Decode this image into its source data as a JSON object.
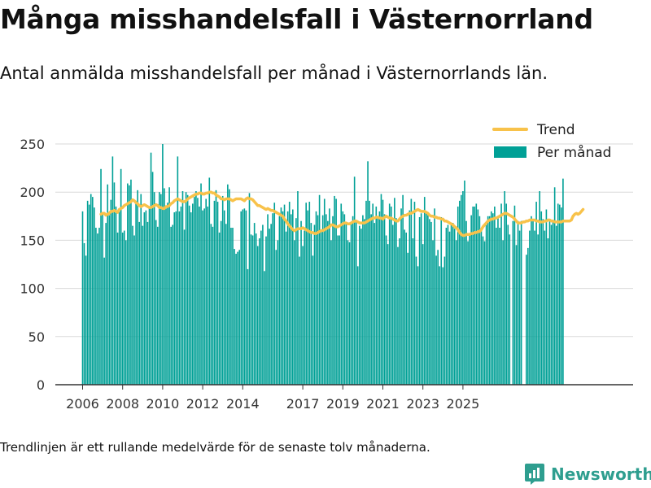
{
  "header": {
    "title": "Många misshandelsfall i Västernorrland",
    "subtitle": "Antal anmälda misshandelsfall per månad i Västernorrlands län."
  },
  "footer": {
    "note": "Trendlinjen är ett rullande medelvärde för de senaste tolv månaderna.",
    "brand": "Newsworthy"
  },
  "colors": {
    "bar": "#00a096",
    "trend": "#f8c24a",
    "grid": "#d9d9d9",
    "axis": "#333333",
    "brand": "#2e9e8f"
  },
  "icons": {
    "brand_logo": "bar-chart-logo-icon"
  },
  "chart_data": {
    "type": "bar",
    "x_start": "2006-01",
    "ylim": [
      0,
      250
    ],
    "yticks": [
      0,
      50,
      100,
      150,
      200,
      250
    ],
    "xticks": [
      {
        "label": "2006",
        "date": "2006-01"
      },
      {
        "label": "2008",
        "date": "2008-01"
      },
      {
        "label": "2010",
        "date": "2010-01"
      },
      {
        "label": "2012",
        "date": "2012-01"
      },
      {
        "label": "2014",
        "date": "2014-01"
      },
      {
        "label": "2017",
        "date": "2017-01"
      },
      {
        "label": "2019",
        "date": "2019-01"
      },
      {
        "label": "2021",
        "date": "2021-01"
      },
      {
        "label": "2023",
        "date": "2023-01"
      },
      {
        "label": "2025",
        "date": "2025-01"
      }
    ],
    "grid": true,
    "legend_position": "top-right",
    "series": [
      {
        "name": "Per månad",
        "type": "bar",
        "values": [
          180,
          147,
          134,
          191,
          187,
          198,
          195,
          184,
          163,
          157,
          163,
          224,
          178,
          132,
          168,
          208,
          176,
          192,
          237,
          210,
          185,
          158,
          180,
          224,
          158,
          160,
          150,
          209,
          207,
          213,
          165,
          155,
          191,
          202,
          169,
          198,
          165,
          179,
          181,
          169,
          185,
          241,
          221,
          200,
          171,
          164,
          200,
          198,
          250,
          204,
          183,
          189,
          205,
          164,
          166,
          179,
          180,
          237,
          180,
          185,
          201,
          161,
          200,
          197,
          186,
          179,
          188,
          195,
          201,
          194,
          185,
          209,
          181,
          183,
          193,
          185,
          215,
          167,
          164,
          191,
          202,
          190,
          158,
          170,
          196,
          181,
          167,
          208,
          203,
          163,
          163,
          141,
          136,
          138,
          140,
          180,
          182,
          183,
          181,
          120,
          199,
          156,
          155,
          168,
          157,
          144,
          152,
          160,
          166,
          118,
          154,
          177,
          162,
          167,
          178,
          189,
          140,
          150,
          175,
          184,
          180,
          187,
          159,
          180,
          190,
          177,
          182,
          150,
          173,
          201,
          133,
          170,
          144,
          160,
          189,
          181,
          190,
          168,
          134,
          166,
          180,
          176,
          197,
          160,
          176,
          193,
          177,
          170,
          183,
          150,
          175,
          196,
          193,
          155,
          155,
          188,
          180,
          177,
          167,
          150,
          148,
          167,
          175,
          216,
          170,
          123,
          165,
          162,
          176,
          172,
          191,
          232,
          191,
          177,
          188,
          168,
          185,
          174,
          180,
          198,
          192,
          177,
          155,
          146,
          188,
          185,
          166,
          194,
          173,
          143,
          152,
          183,
          197,
          161,
          158,
          137,
          181,
          193,
          152,
          190,
          133,
          123,
          174,
          178,
          146,
          195,
          180,
          176,
          172,
          169,
          150,
          183,
          134,
          140,
          123,
          174,
          122,
          133,
          163,
          166,
          159,
          168,
          168,
          162,
          150,
          185,
          191,
          197,
          201,
          212,
          170,
          149,
          155,
          176,
          185,
          185,
          188,
          182,
          175,
          162,
          154,
          149,
          166,
          175,
          175,
          180,
          178,
          185,
          163,
          175,
          163,
          188,
          150,
          201,
          188,
          166,
          156,
          0,
          170,
          186,
          145,
          170,
          160,
          170,
          0,
          0,
          135,
          142,
          160,
          175,
          170,
          160,
          190,
          156,
          201,
          180,
          172,
          160,
          182,
          152,
          172,
          166,
          170,
          205,
          165,
          188,
          187,
          184,
          214
        ]
      },
      {
        "name": "Trend",
        "type": "line",
        "start_index": 11,
        "values": [
          177,
          178,
          178,
          176,
          177,
          178,
          180,
          180,
          181,
          180,
          179,
          182,
          183,
          184,
          186,
          187,
          188,
          189,
          190,
          192,
          191,
          189,
          188,
          186,
          185,
          186,
          187,
          186,
          185,
          184,
          184,
          185,
          186,
          187,
          186,
          184,
          184,
          183,
          183,
          185,
          185,
          186,
          188,
          189,
          191,
          192,
          193,
          192,
          191,
          190,
          190,
          191,
          193,
          194,
          195,
          196,
          197,
          198,
          198,
          199,
          199,
          198,
          198,
          199,
          199,
          200,
          200,
          199,
          199,
          197,
          196,
          195,
          193,
          193,
          192,
          193,
          193,
          193,
          192,
          191,
          192,
          193,
          193,
          193,
          193,
          192,
          191,
          193,
          194,
          193,
          193,
          192,
          190,
          188,
          186,
          186,
          185,
          184,
          183,
          182,
          183,
          182,
          181,
          181,
          180,
          179,
          178,
          177,
          176,
          175,
          172,
          170,
          167,
          165,
          163,
          161,
          160,
          161,
          162,
          162,
          162,
          163,
          162,
          161,
          160,
          159,
          158,
          158,
          157,
          157,
          158,
          159,
          160,
          160,
          161,
          162,
          163,
          164,
          166,
          166,
          165,
          164,
          164,
          165,
          166,
          167,
          168,
          168,
          167,
          167,
          168,
          169,
          170,
          170,
          169,
          168,
          168,
          168,
          168,
          169,
          170,
          171,
          172,
          173,
          173,
          174,
          174,
          173,
          173,
          172,
          174,
          175,
          174,
          173,
          173,
          172,
          171,
          170,
          170,
          172,
          174,
          175,
          176,
          176,
          177,
          178,
          178,
          179,
          180,
          181,
          182,
          181,
          180,
          180,
          180,
          179,
          178,
          176,
          175,
          175,
          174,
          174,
          173,
          173,
          172,
          172,
          170,
          170,
          169,
          168,
          167,
          166,
          164,
          163,
          161,
          158,
          156,
          155,
          155,
          156,
          156,
          156,
          157,
          157,
          158,
          158,
          159,
          159,
          161,
          164,
          166,
          168,
          170,
          171,
          172,
          172,
          173,
          173,
          174,
          175,
          176,
          177,
          178,
          178,
          177,
          176,
          175,
          174,
          172,
          170,
          168,
          168,
          168,
          169,
          169,
          170,
          170,
          171,
          171,
          171,
          171,
          170,
          170,
          169,
          169,
          169,
          170,
          170,
          171,
          171,
          170,
          170,
          169,
          169,
          169,
          169,
          169,
          170,
          170,
          170,
          170,
          170,
          171,
          175,
          177,
          178,
          177,
          178,
          180,
          182
        ]
      }
    ]
  }
}
